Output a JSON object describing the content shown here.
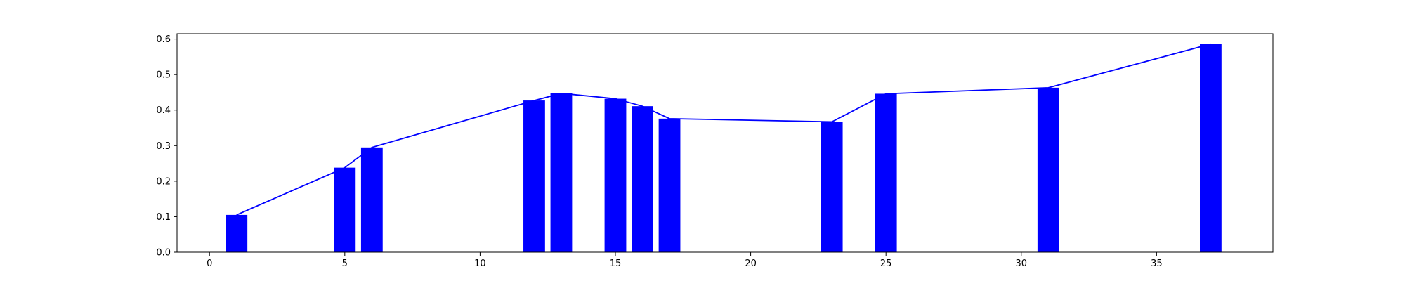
{
  "chart_data": {
    "type": "bar",
    "title": "",
    "xlabel": "",
    "ylabel": "",
    "x": [
      1,
      5,
      6,
      12,
      13,
      15,
      16,
      17,
      23,
      25,
      31,
      37
    ],
    "values": [
      0.105,
      0.238,
      0.295,
      0.427,
      0.447,
      0.432,
      0.411,
      0.376,
      0.367,
      0.446,
      0.463,
      0.586
    ],
    "xlim": [
      -1.2,
      39.3
    ],
    "ylim": [
      0,
      0.615
    ],
    "xticks": [
      0,
      5,
      10,
      15,
      20,
      25,
      30,
      35
    ],
    "yticks": [
      0.0,
      0.1,
      0.2,
      0.3,
      0.4,
      0.5,
      0.6
    ],
    "xtick_labels": [
      "0",
      "5",
      "10",
      "15",
      "20",
      "25",
      "30",
      "35"
    ],
    "ytick_labels": [
      "0.0",
      "0.1",
      "0.2",
      "0.3",
      "0.4",
      "0.5",
      "0.6"
    ],
    "bar_color": "#0000ff",
    "line_color": "#0000ff",
    "overlay": "line through bar tops",
    "grid": false,
    "legend": "none"
  }
}
